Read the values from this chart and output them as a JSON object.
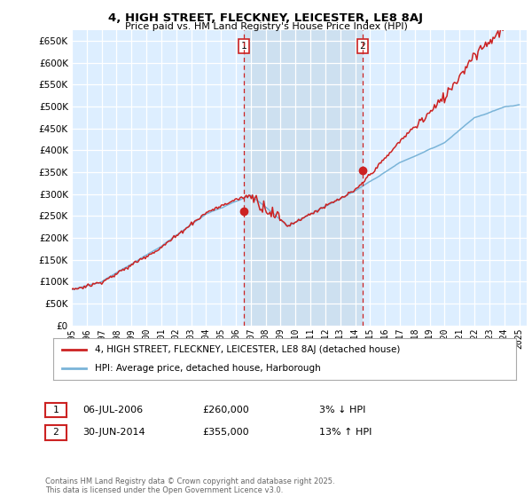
{
  "title": "4, HIGH STREET, FLECKNEY, LEICESTER, LE8 8AJ",
  "subtitle": "Price paid vs. HM Land Registry's House Price Index (HPI)",
  "ytick_values": [
    0,
    50000,
    100000,
    150000,
    200000,
    250000,
    300000,
    350000,
    400000,
    450000,
    500000,
    550000,
    600000,
    650000
  ],
  "xlim_start": 1995.0,
  "xlim_end": 2025.5,
  "ylim_min": 0,
  "ylim_max": 675000,
  "transaction1": {
    "date": 2006.52,
    "price": 260000,
    "label": "1"
  },
  "transaction2": {
    "date": 2014.5,
    "price": 355000,
    "label": "2"
  },
  "hpi_color": "#7ab4d8",
  "price_color": "#cc2222",
  "dashed_color": "#cc2222",
  "shade_color": "#cde0f0",
  "background_color": "#ddeeff",
  "grid_color": "#bbccdd",
  "legend_line1": "4, HIGH STREET, FLECKNEY, LEICESTER, LE8 8AJ (detached house)",
  "legend_line2": "HPI: Average price, detached house, Harborough",
  "annotation1_label": "1",
  "annotation1_date": "06-JUL-2006",
  "annotation1_price": "£260,000",
  "annotation1_hpi": "3% ↓ HPI",
  "annotation2_label": "2",
  "annotation2_date": "30-JUN-2014",
  "annotation2_price": "£355,000",
  "annotation2_hpi": "13% ↑ HPI",
  "footer": "Contains HM Land Registry data © Crown copyright and database right 2025.\nThis data is licensed under the Open Government Licence v3.0."
}
